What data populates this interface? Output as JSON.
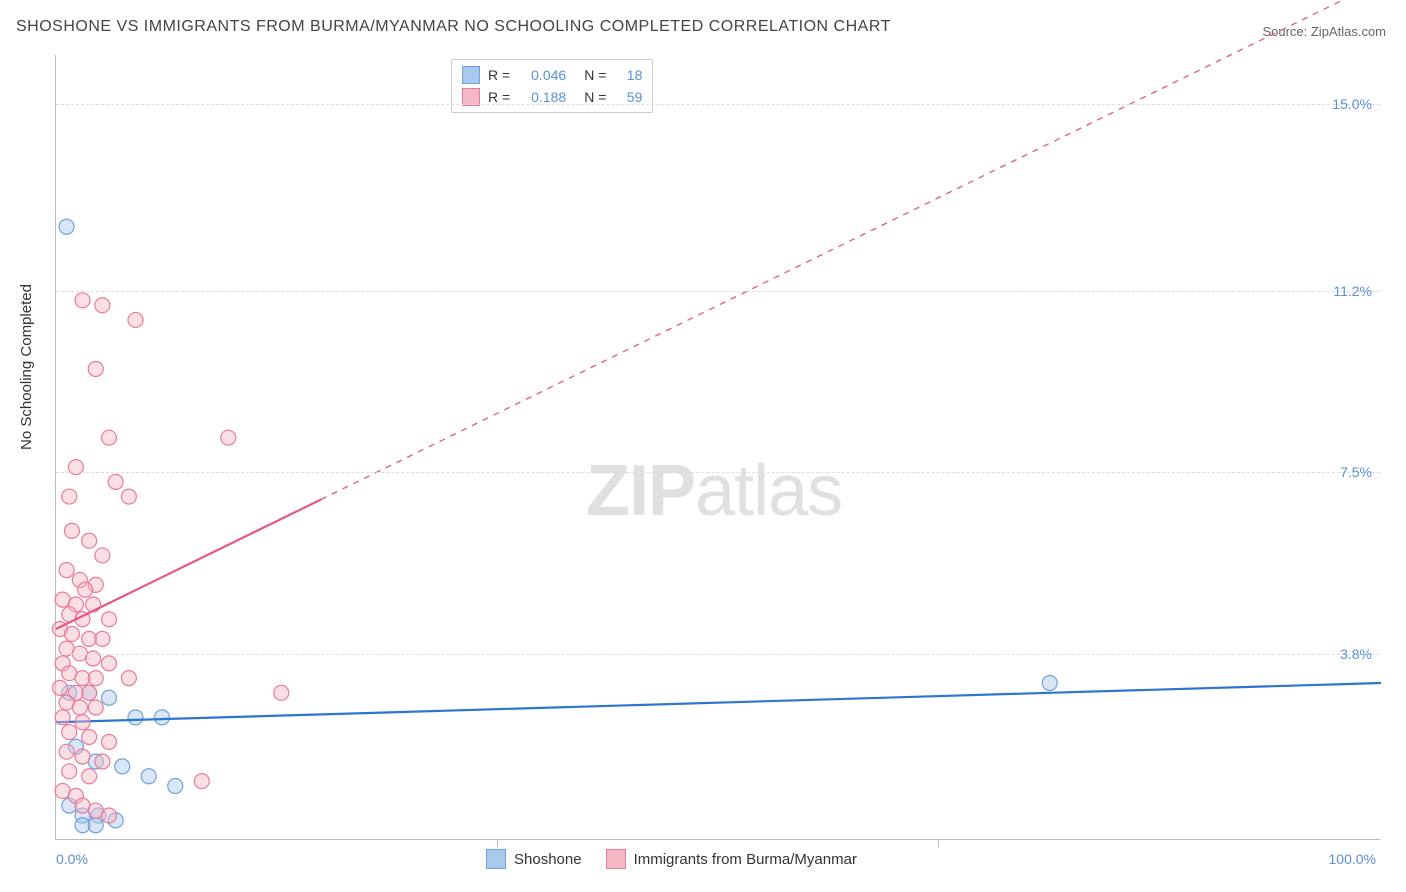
{
  "title": "SHOSHONE VS IMMIGRANTS FROM BURMA/MYANMAR NO SCHOOLING COMPLETED CORRELATION CHART",
  "source_label": "Source: ZipAtlas.com",
  "ylabel": "No Schooling Completed",
  "watermark": {
    "bold": "ZIP",
    "light": "atlas"
  },
  "chart": {
    "type": "scatter-with-regression",
    "background_color": "#ffffff",
    "grid_color": "#dddddd",
    "axis_color": "#bbbbbb",
    "xlim": [
      0,
      100
    ],
    "ylim": [
      0,
      16
    ],
    "yticks": [
      {
        "value": 3.8,
        "label": "3.8%"
      },
      {
        "value": 7.5,
        "label": "7.5%"
      },
      {
        "value": 11.2,
        "label": "11.2%"
      },
      {
        "value": 15.0,
        "label": "15.0%"
      }
    ],
    "xticks": [
      {
        "value": 0,
        "label": "0.0%",
        "align": "left"
      },
      {
        "value": 33.3,
        "label": ""
      },
      {
        "value": 66.6,
        "label": ""
      },
      {
        "value": 100,
        "label": "100.0%",
        "align": "right"
      }
    ],
    "series": [
      {
        "name": "Shoshone",
        "color_fill": "#a8c8ec",
        "color_stroke": "#6fa3dd",
        "line_color": "#2f74d0",
        "line_width": 2.2,
        "marker_radius": 7.5,
        "R": "0.046",
        "N": "18",
        "regression": {
          "x1": 0,
          "y1": 2.4,
          "x2": 100,
          "y2": 3.2,
          "dashed_from_x": null
        },
        "points": [
          [
            0.8,
            12.5
          ],
          [
            75.0,
            3.2
          ],
          [
            1.0,
            3.0
          ],
          [
            2.5,
            3.0
          ],
          [
            4.0,
            2.9
          ],
          [
            6.0,
            2.5
          ],
          [
            8.0,
            2.5
          ],
          [
            1.5,
            1.9
          ],
          [
            3.0,
            1.6
          ],
          [
            5.0,
            1.5
          ],
          [
            7.0,
            1.3
          ],
          [
            9.0,
            1.1
          ],
          [
            1.0,
            0.7
          ],
          [
            2.0,
            0.5
          ],
          [
            3.2,
            0.5
          ],
          [
            4.5,
            0.4
          ],
          [
            2.0,
            0.3
          ],
          [
            3.0,
            0.3
          ]
        ]
      },
      {
        "name": "Immigrants from Burma/Myanmar",
        "color_fill": "#f5b8c5",
        "color_stroke": "#e97a98",
        "line_color": "#e35a82",
        "line_width": 2.2,
        "marker_radius": 7.5,
        "R": "0.188",
        "N": "59",
        "regression": {
          "x1": 0,
          "y1": 4.3,
          "x2": 100,
          "y2": 17.5,
          "dashed_from_x": 20
        },
        "points": [
          [
            2.0,
            11.0
          ],
          [
            3.5,
            10.9
          ],
          [
            6.0,
            10.6
          ],
          [
            3.0,
            9.6
          ],
          [
            4.0,
            8.2
          ],
          [
            13.0,
            8.2
          ],
          [
            1.5,
            7.6
          ],
          [
            4.5,
            7.3
          ],
          [
            1.0,
            7.0
          ],
          [
            5.5,
            7.0
          ],
          [
            1.2,
            6.3
          ],
          [
            2.5,
            6.1
          ],
          [
            3.5,
            5.8
          ],
          [
            0.8,
            5.5
          ],
          [
            1.8,
            5.3
          ],
          [
            3.0,
            5.2
          ],
          [
            2.2,
            5.1
          ],
          [
            0.5,
            4.9
          ],
          [
            1.5,
            4.8
          ],
          [
            2.8,
            4.8
          ],
          [
            1.0,
            4.6
          ],
          [
            2.0,
            4.5
          ],
          [
            4.0,
            4.5
          ],
          [
            0.3,
            4.3
          ],
          [
            1.2,
            4.2
          ],
          [
            2.5,
            4.1
          ],
          [
            3.5,
            4.1
          ],
          [
            0.8,
            3.9
          ],
          [
            1.8,
            3.8
          ],
          [
            2.8,
            3.7
          ],
          [
            0.5,
            3.6
          ],
          [
            4.0,
            3.6
          ],
          [
            1.0,
            3.4
          ],
          [
            2.0,
            3.3
          ],
          [
            3.0,
            3.3
          ],
          [
            5.5,
            3.3
          ],
          [
            0.3,
            3.1
          ],
          [
            1.5,
            3.0
          ],
          [
            2.5,
            3.0
          ],
          [
            17.0,
            3.0
          ],
          [
            0.8,
            2.8
          ],
          [
            1.8,
            2.7
          ],
          [
            3.0,
            2.7
          ],
          [
            0.5,
            2.5
          ],
          [
            2.0,
            2.4
          ],
          [
            1.0,
            2.2
          ],
          [
            2.5,
            2.1
          ],
          [
            4.0,
            2.0
          ],
          [
            0.8,
            1.8
          ],
          [
            2.0,
            1.7
          ],
          [
            3.5,
            1.6
          ],
          [
            1.0,
            1.4
          ],
          [
            2.5,
            1.3
          ],
          [
            11.0,
            1.2
          ],
          [
            0.5,
            1.0
          ],
          [
            1.5,
            0.9
          ],
          [
            2.0,
            0.7
          ],
          [
            3.0,
            0.6
          ],
          [
            4.0,
            0.5
          ]
        ]
      }
    ]
  },
  "stats_legend": {
    "rows": [
      {
        "swatch_fill": "#a8c8ec",
        "swatch_border": "#6fa3dd",
        "R": "0.046",
        "N": "18"
      },
      {
        "swatch_fill": "#f5b8c5",
        "swatch_border": "#e97a98",
        "R": "0.188",
        "N": "59"
      }
    ]
  },
  "bottom_legend": [
    {
      "swatch_fill": "#a8c8ec",
      "swatch_border": "#6fa3dd",
      "label": "Shoshone"
    },
    {
      "swatch_fill": "#f5b8c5",
      "swatch_border": "#e97a98",
      "label": "Immigrants from Burma/Myanmar"
    }
  ]
}
